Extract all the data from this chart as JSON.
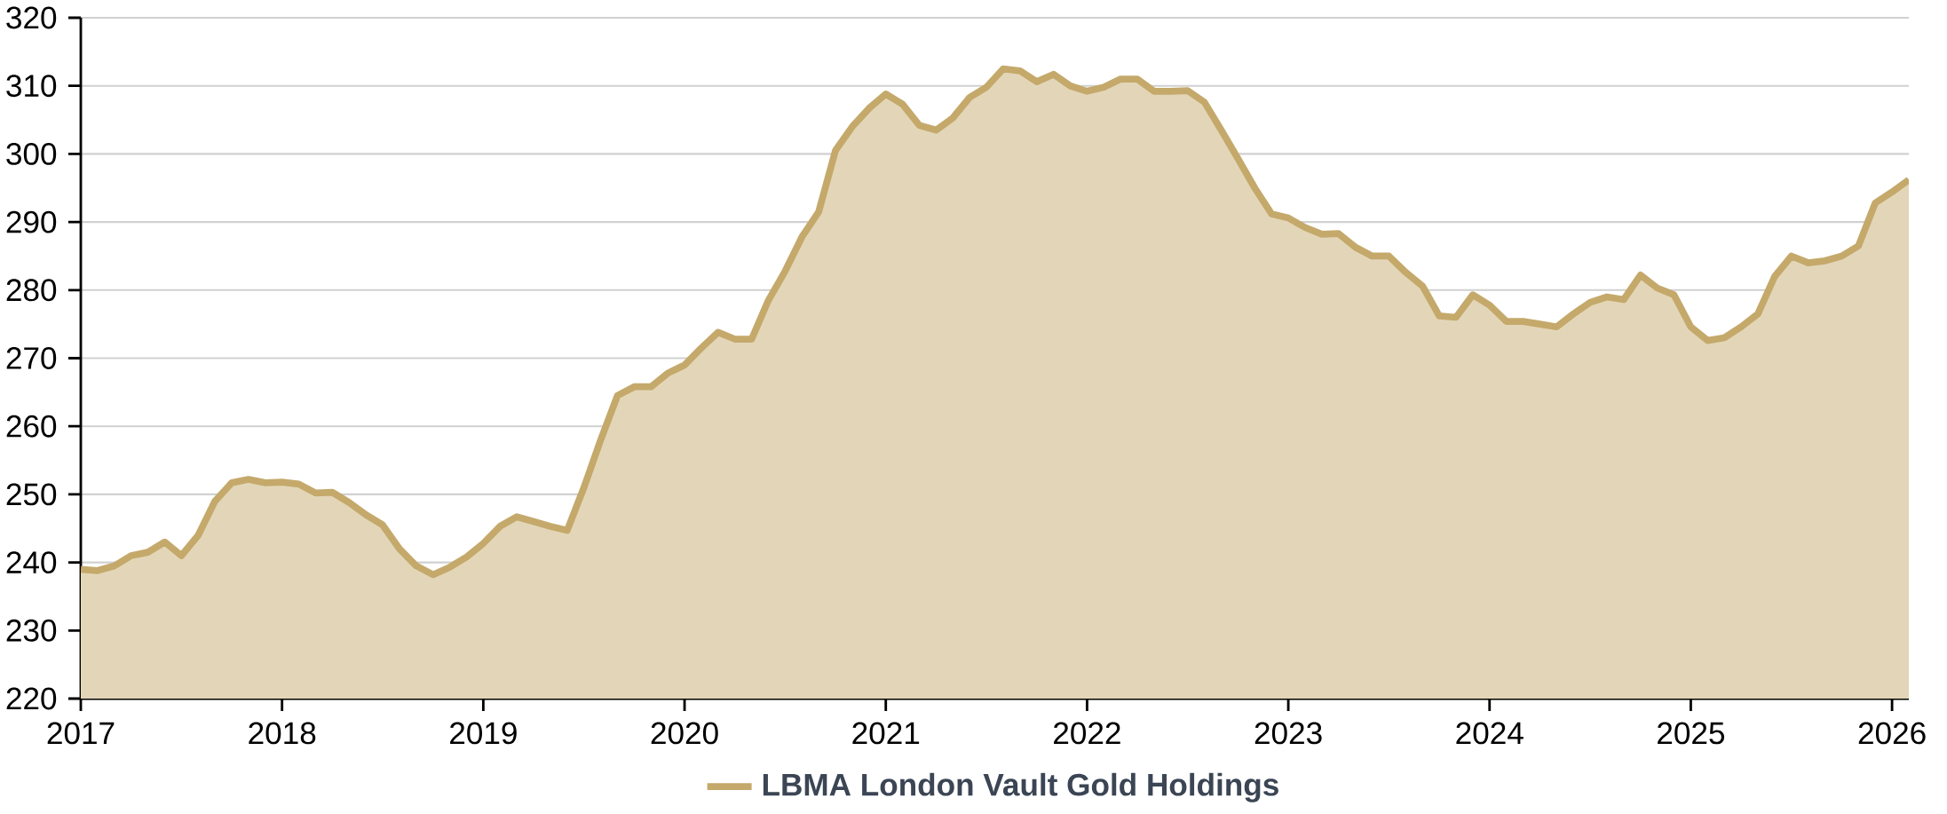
{
  "chart_data": {
    "type": "area",
    "x": [
      "2017-01",
      "2017-02",
      "2017-03",
      "2017-04",
      "2017-05",
      "2017-06",
      "2017-07",
      "2017-08",
      "2017-09",
      "2017-10",
      "2017-11",
      "2017-12",
      "2018-01",
      "2018-02",
      "2018-03",
      "2018-04",
      "2018-05",
      "2018-06",
      "2018-07",
      "2018-08",
      "2018-09",
      "2018-10",
      "2018-11",
      "2018-12",
      "2019-01",
      "2019-02",
      "2019-03",
      "2019-04",
      "2019-05",
      "2019-06",
      "2019-07",
      "2019-08",
      "2019-09",
      "2019-10",
      "2019-11",
      "2019-12",
      "2020-01",
      "2020-02",
      "2020-03",
      "2020-04",
      "2020-05",
      "2020-06",
      "2020-07",
      "2020-08",
      "2020-09",
      "2020-10",
      "2020-11",
      "2020-12",
      "2021-01",
      "2021-02",
      "2021-03",
      "2021-04",
      "2021-05",
      "2021-06",
      "2021-07",
      "2021-08",
      "2021-09",
      "2021-10",
      "2021-11",
      "2021-12",
      "2022-01",
      "2022-02",
      "2022-03",
      "2022-04",
      "2022-05",
      "2022-06",
      "2022-07",
      "2022-08",
      "2022-09",
      "2022-10",
      "2022-11",
      "2022-12",
      "2023-01",
      "2023-02",
      "2023-03",
      "2023-04",
      "2023-05",
      "2023-06",
      "2023-07",
      "2023-08",
      "2023-09",
      "2023-10",
      "2023-11",
      "2023-12",
      "2024-01",
      "2024-02",
      "2024-03",
      "2024-04",
      "2024-05",
      "2024-06",
      "2024-07",
      "2024-08",
      "2024-09",
      "2024-10",
      "2024-11",
      "2024-12",
      "2025-01",
      "2025-02",
      "2025-03",
      "2025-04",
      "2025-05",
      "2025-06",
      "2025-07",
      "2025-08",
      "2025-09",
      "2025-10",
      "2025-11",
      "2025-12",
      "2026-01",
      "2026-02"
    ],
    "series": [
      {
        "name": "LBMA London Vault Gold Holdings",
        "color": "#c4a96b",
        "values": [
          239,
          238.8,
          239.5,
          241,
          241.5,
          243,
          241,
          244,
          249,
          251.7,
          252.2,
          251.7,
          251.8,
          251.5,
          250.2,
          250.3,
          248.8,
          247,
          245.5,
          242,
          239.5,
          238.2,
          239.3,
          240.8,
          242.8,
          245.3,
          246.7,
          246,
          245.3,
          244.7,
          251,
          258,
          264.5,
          265.8,
          265.8,
          267.8,
          269,
          271.5,
          273.8,
          272.8,
          272.8,
          278.5,
          282.8,
          287.8,
          291.5,
          300.5,
          304,
          306.7,
          308.8,
          307.3,
          304.2,
          303.5,
          305.3,
          308.3,
          309.8,
          312.5,
          312.2,
          310.6,
          311.7,
          310,
          309.2,
          309.8,
          311,
          311,
          309.2,
          309.2,
          309.3,
          307.6,
          303.5,
          299.3,
          295,
          291.2,
          290.6,
          289.2,
          288.2,
          288.3,
          286.3,
          285,
          285,
          282.6,
          280.6,
          276.2,
          276,
          279.3,
          277.8,
          275.4,
          275.4,
          275,
          274.6,
          276.5,
          278.2,
          279,
          278.6,
          282.2,
          280.3,
          279.3,
          274.6,
          272.6,
          273,
          274.6,
          276.5,
          282,
          285,
          284,
          284.3,
          285,
          286.5,
          292.8,
          294.4,
          296.2
        ]
      }
    ],
    "xlim": [
      "2017-01",
      "2026-02"
    ],
    "xticks": [
      "2017",
      "2018",
      "2019",
      "2020",
      "2021",
      "2022",
      "2023",
      "2024",
      "2025",
      "2026"
    ],
    "ylim": [
      220,
      320
    ],
    "yticks": [
      220,
      230,
      240,
      250,
      260,
      270,
      280,
      290,
      300,
      310,
      320
    ],
    "grid": "y",
    "legend": "bottom"
  }
}
